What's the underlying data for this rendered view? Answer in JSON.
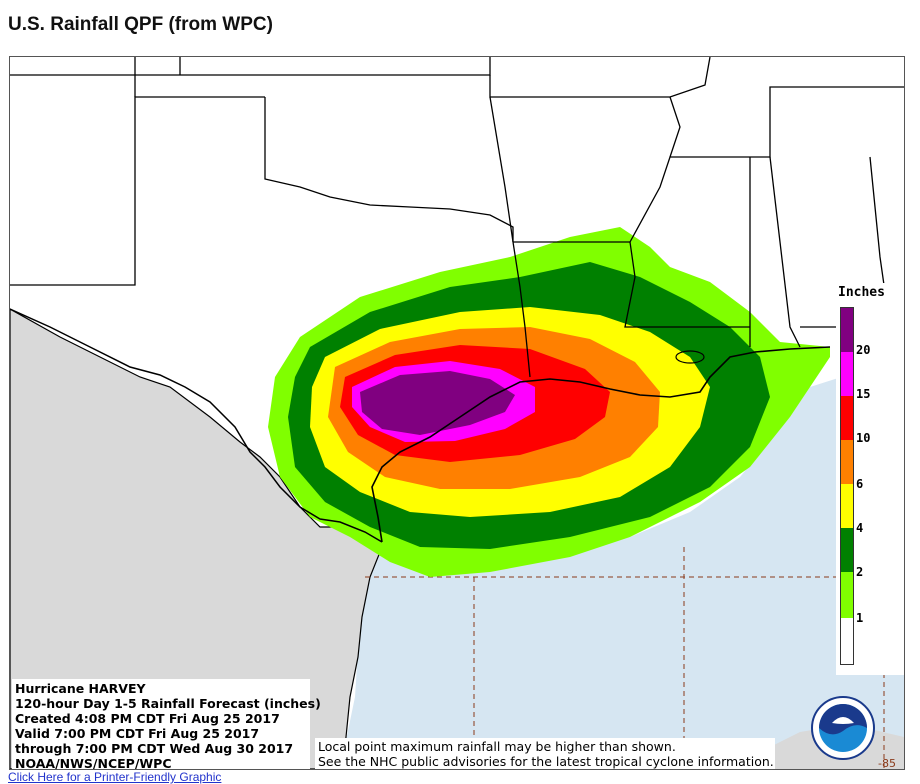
{
  "title": "U.S. Rainfall QPF (from WPC)",
  "legend": {
    "title": "Inches",
    "levels": [
      {
        "label": "20",
        "color": "#800080"
      },
      {
        "label": "15",
        "color": "#ff00ff"
      },
      {
        "label": "10",
        "color": "#ff0000"
      },
      {
        "label": "6",
        "color": "#ff8000"
      },
      {
        "label": "4",
        "color": "#ffff00"
      },
      {
        "label": "2",
        "color": "#008000"
      },
      {
        "label": "1",
        "color": "#80ff00"
      },
      {
        "label": "",
        "color": "#ffffff"
      }
    ],
    "top_color": "#800080"
  },
  "info": {
    "line1": "Hurricane HARVEY",
    "line2": "120-hour Day 1-5 Rainfall Forecast (inches)",
    "line3": "Created 4:08 PM CDT Fri Aug 25 2017",
    "line4": "Valid 7:00 PM CDT Fri Aug 25 2017",
    "line5": "through 7:00 PM CDT Wed Aug 30 2017",
    "line6": "NOAA/NWS/NCEP/WPC"
  },
  "note": {
    "line1": "Local point maximum rainfall may be higher than shown.",
    "line2": "See the NHC public advisories for the latest tropical cyclone information."
  },
  "lon_label": "-85",
  "footer_link": "Click Here for a Printer-Friendly Graphic",
  "colors": {
    "land_us": "#ffffff",
    "land_mexico": "#d9d9d9",
    "water": "#d6e6f2",
    "borders": "#000000",
    "grid": "#8b3a1a"
  },
  "icons": [
    "noaa-logo-icon"
  ]
}
